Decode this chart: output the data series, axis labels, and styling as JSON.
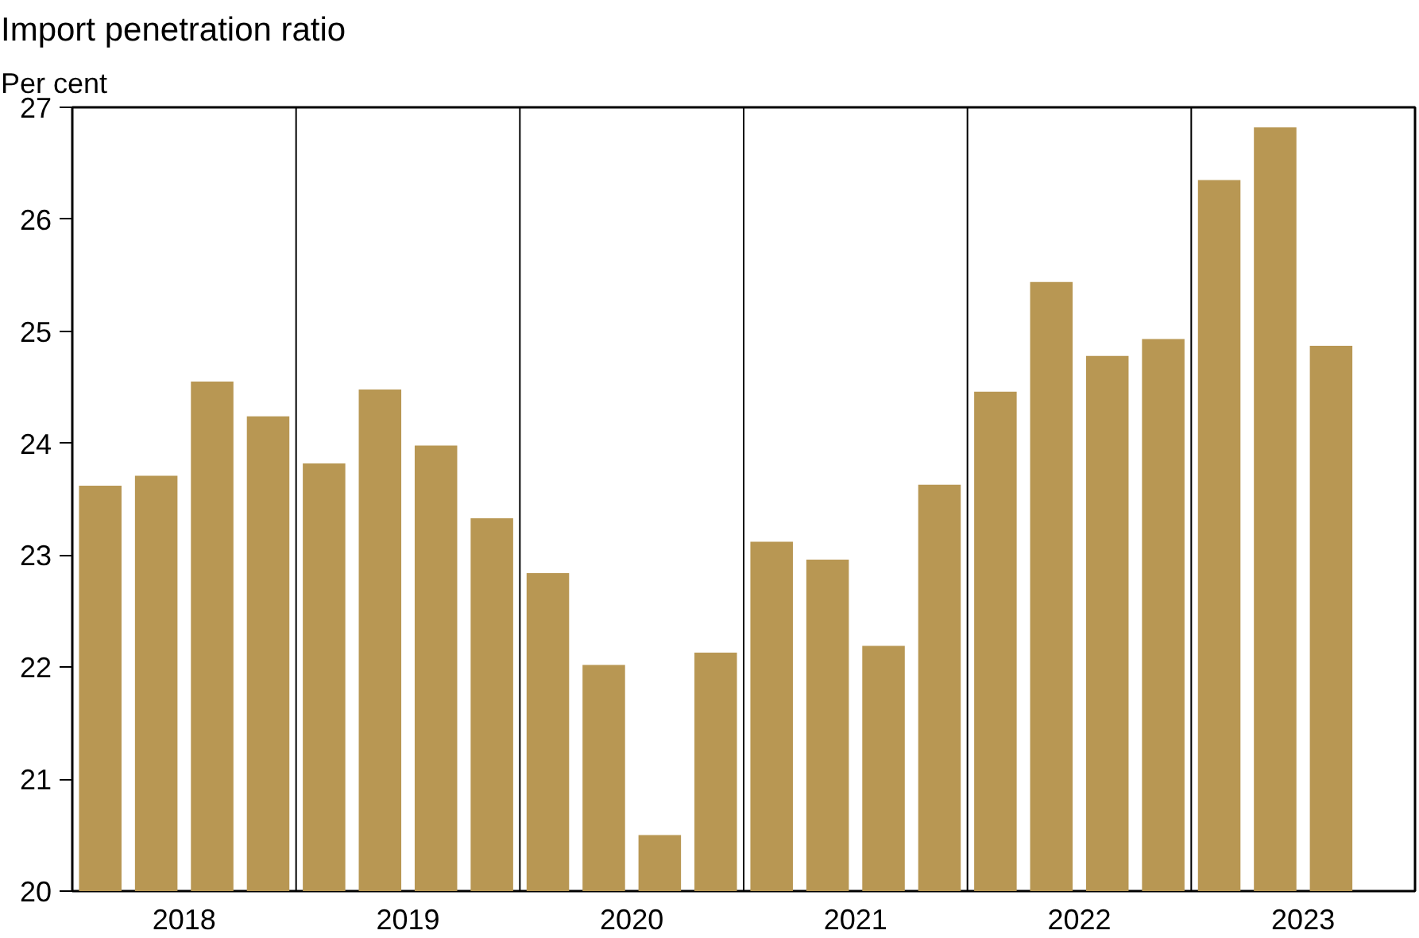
{
  "chart_data": {
    "type": "bar",
    "title": "Import penetration ratio",
    "ylabel": "Per cent",
    "x": [
      2018.125,
      2018.375,
      2018.625,
      2018.875,
      2019.125,
      2019.375,
      2019.625,
      2019.875,
      2020.125,
      2020.375,
      2020.625,
      2020.875,
      2021.125,
      2021.375,
      2021.625,
      2021.875,
      2022.125,
      2022.375,
      2022.625,
      2022.875,
      2023.125,
      2023.375,
      2023.625
    ],
    "values": [
      23.62,
      23.71,
      24.55,
      24.24,
      23.82,
      24.48,
      23.98,
      23.33,
      22.84,
      22.02,
      20.5,
      22.13,
      23.12,
      22.96,
      22.19,
      23.63,
      24.46,
      25.44,
      24.78,
      24.93,
      26.35,
      26.82,
      24.87
    ],
    "color": "#b89753",
    "xlim": [
      2018,
      2024
    ],
    "xticks": [
      {
        "value": 2018.5,
        "label": "2018"
      },
      {
        "value": 2019.5,
        "label": "2019"
      },
      {
        "value": 2020.5,
        "label": "2020"
      },
      {
        "value": 2021.5,
        "label": "2021"
      },
      {
        "value": 2022.5,
        "label": "2022"
      },
      {
        "value": 2023.5,
        "label": "2023"
      }
    ],
    "ylim": [
      20,
      27
    ],
    "yticks": [
      20,
      21,
      22,
      23,
      24,
      25,
      26,
      27
    ],
    "ref_lines": [
      {
        "axis": "x",
        "value": 2019,
        "color": "#000000"
      },
      {
        "axis": "x",
        "value": 2020,
        "color": "#000000"
      },
      {
        "axis": "x",
        "value": 2021,
        "color": "#000000"
      },
      {
        "axis": "x",
        "value": 2022,
        "color": "#000000"
      },
      {
        "axis": "x",
        "value": 2023,
        "color": "#000000"
      }
    ],
    "grid": false
  }
}
